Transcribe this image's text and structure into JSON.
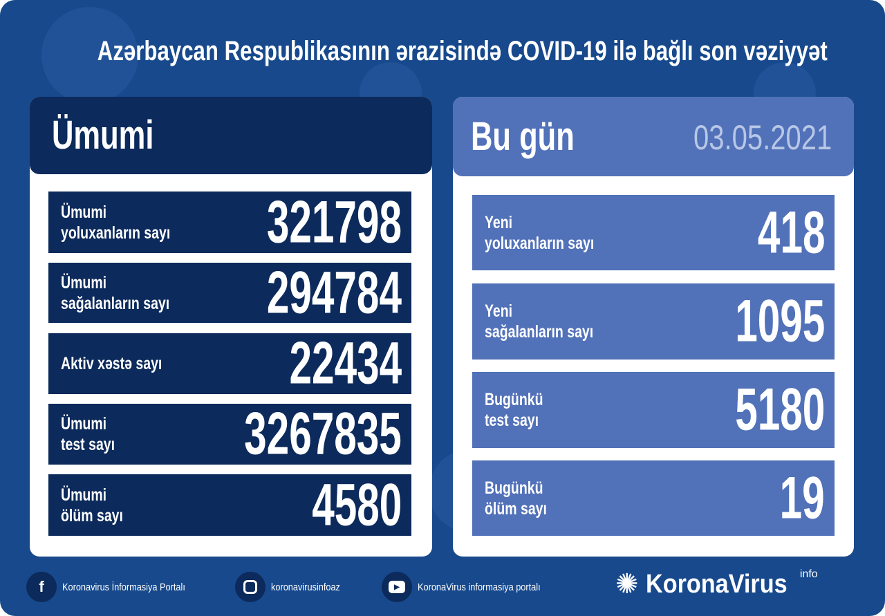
{
  "title": "Azərbaycan Respublikasının ərazisində COVID-19 ilə bağlı son vəziyyət",
  "colors": {
    "background": "#17498c",
    "dark_panel": "#0c2a5b",
    "light_panel": "#5171b9",
    "card": "#ffffff"
  },
  "total": {
    "heading": "Ümumi",
    "rows": [
      {
        "label": "Ümumi\nyoluxanların sayı",
        "value": "321798"
      },
      {
        "label": "Ümumi\nsağalanların sayı",
        "value": "294784"
      },
      {
        "label": "Aktiv xəstə sayı",
        "value": "22434"
      },
      {
        "label": "Ümumi\ntest sayı",
        "value": "3267835"
      },
      {
        "label": "Ümumi\nölüm sayı",
        "value": "4580"
      }
    ]
  },
  "today": {
    "heading": "Bu gün",
    "date": "03.05.2021",
    "rows": [
      {
        "label": "Yeni\nyoluxanların sayı",
        "value": "418"
      },
      {
        "label": "Yeni\nsağalanların sayı",
        "value": "1095"
      },
      {
        "label": "Bugünkü\ntest sayı",
        "value": "5180"
      },
      {
        "label": "Bugünkü\nölüm sayı",
        "value": "19"
      }
    ]
  },
  "footer": {
    "facebook": "Koronavirus İnformasiya Portalı",
    "instagram": "koronavirusinfoaz",
    "youtube": "KoronaVirus informasiya portalı",
    "logo_text": "KoronaVirus",
    "logo_sup": "info"
  }
}
